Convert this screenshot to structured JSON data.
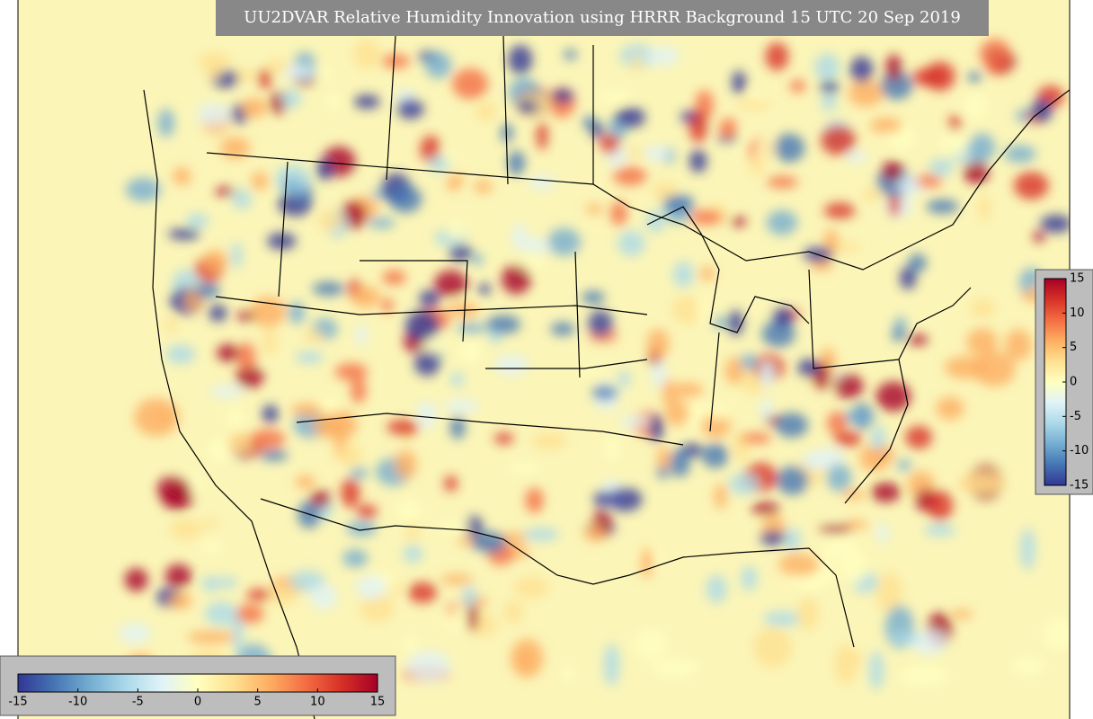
{
  "title": "UU2DVAR Relative Humidity Innovation using HRRR Background 15 UTC 20 Sep 2019",
  "colorbar": {
    "lim": [
      -15,
      15
    ],
    "ticks": [
      -15,
      -10,
      -5,
      0,
      5,
      10,
      15
    ],
    "colors": [
      "#313695",
      "#4575b4",
      "#74add1",
      "#abd9e9",
      "#e0f3f8",
      "#ffffbf",
      "#fee090",
      "#fdae61",
      "#f46d43",
      "#d73027",
      "#a50026"
    ]
  }
}
